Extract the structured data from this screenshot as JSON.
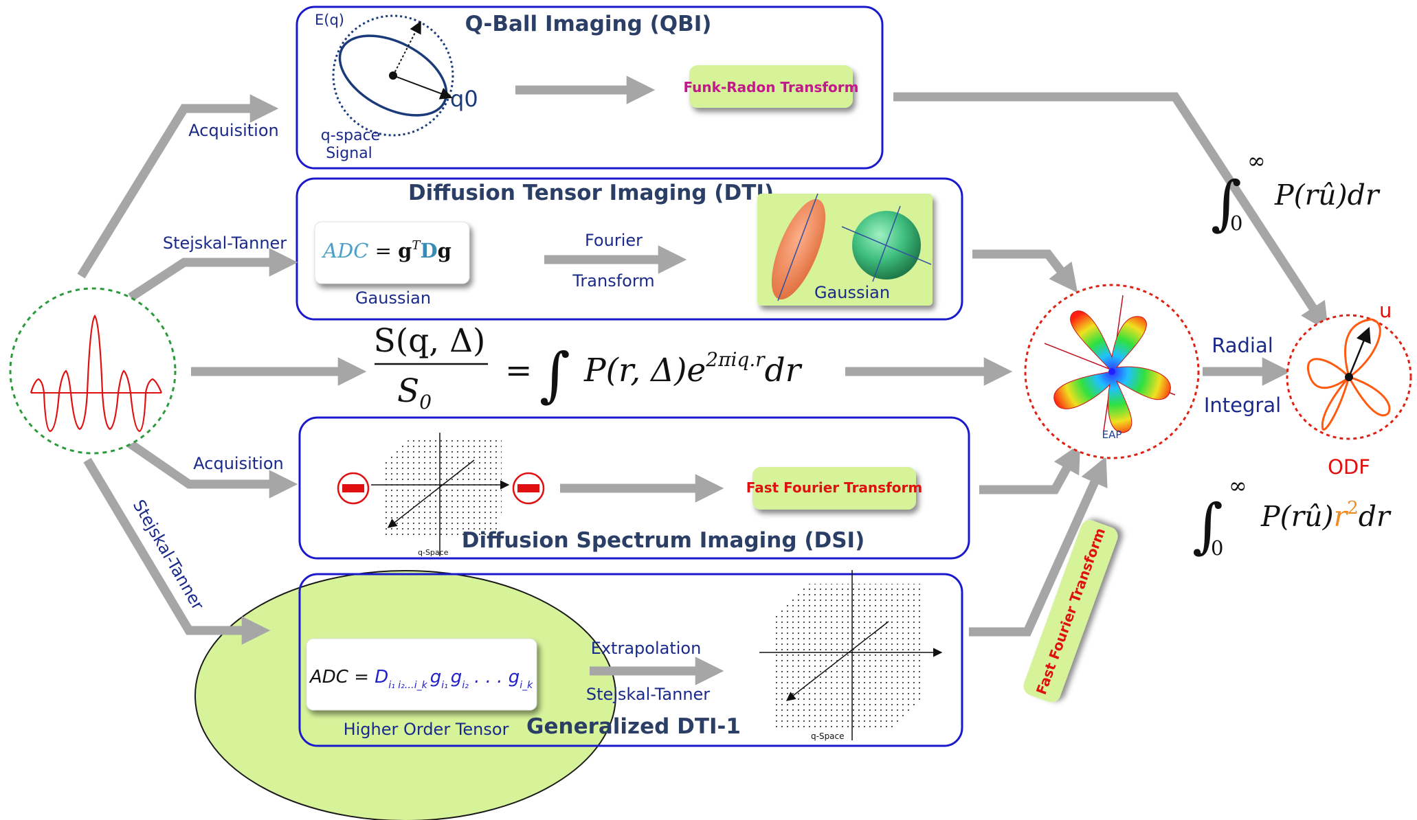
{
  "diagram": {
    "qbi": {
      "title": "Q-Ball Imaging (QBI)",
      "eq_label": "E(q)",
      "q0_label": "q0",
      "qspace_line1": "q-space",
      "qspace_line2": "Signal",
      "transform": "Funk-Radon Transform"
    },
    "dti": {
      "title": "Diffusion Tensor Imaging (DTI)",
      "eq_lhs": "ADC",
      "eq_eq": " = ",
      "eq_g": "g",
      "eq_T": "T",
      "eq_D": "D",
      "eq_g2": "g",
      "gaussian_left": "Gaussian",
      "fourier_line1": "Fourier",
      "fourier_line2": "Transform",
      "gaussian_right": "Gaussian"
    },
    "main_equation": {
      "numerator": "S(q, Δ)",
      "denominator": "S",
      "denominator_sub": "0",
      "rhs_eq": "=",
      "integrand": "P(r, Δ)e",
      "exponent": "2πiq.r",
      "differential": "dr"
    },
    "dsi": {
      "title": "Diffusion Spectrum Imaging (DSI)",
      "axis_label": "q-Space",
      "transform": "Fast Fourier Transform"
    },
    "gdti": {
      "title": "Generalized DTI-1",
      "eq_lhs": "ADC = ",
      "eq_tensor": "D",
      "eq_tensor_sub": "i₁ i₂…i_k",
      "eq_g1": "g",
      "eq_g1_sub": "i₁",
      "eq_g2": "g",
      "eq_g2_sub": "i₂",
      "eq_dots": " . . . ",
      "eq_g3": "g",
      "eq_g3_sub": "i_k",
      "subtitle": "Higher Order Tensor",
      "extrapolation": "Extrapolation",
      "stejskal": "Stejskal-Tanner",
      "axis_label": "q-Space"
    },
    "arrows": {
      "acquisition_top": "Acquisition",
      "stejskal_top": "Stejskal-Tanner",
      "acquisition_mid": "Acquisition",
      "stejskal_bottom": "Stejskal-Tanner"
    },
    "eap": {
      "label": "EAP"
    },
    "vertical_fft": "Fast Fourier Transform",
    "odf": {
      "u_label": "u",
      "label": "ODF",
      "radial": "Radial",
      "integral": "Integral",
      "int1_upper": "∞",
      "int1_lower": "0",
      "int1_body": "P(rû)dr",
      "int2_upper": "∞",
      "int2_lower": "0",
      "int2_body_a": "P(rû)",
      "int2_r2": "r",
      "int2_r2_exp": "2",
      "int2_body_b": "dr"
    }
  },
  "colors": {
    "box_border": "#1a1acc",
    "arrow_gray": "#a6a6a6",
    "green_box": "#d6f39a",
    "magenta_text": "#c2188a",
    "red_text": "#e01010",
    "odf_orange": "#ff5a10",
    "title_text": "#2b3f66",
    "label_blue": "#1a2a8a"
  }
}
